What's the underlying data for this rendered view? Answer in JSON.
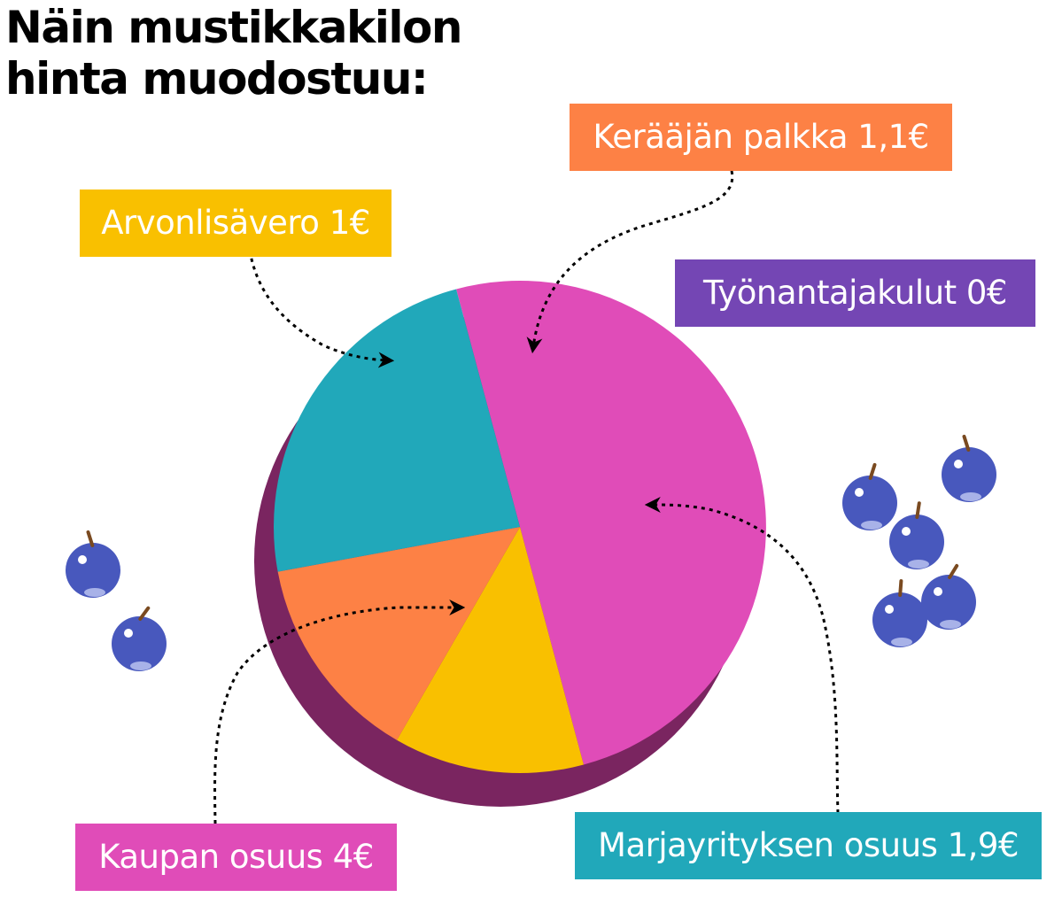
{
  "title": {
    "line1": "Näin mustikkakilon",
    "line2": "hinta muodostuu:"
  },
  "chart_data": {
    "type": "pie",
    "unit": "€",
    "slices": [
      {
        "label": "Kaupan osuus 4€",
        "value": 4.0,
        "color": "#e04cb8",
        "side_color": "#7a2560"
      },
      {
        "label": "Arvonlisävero 1€",
        "value": 1.0,
        "color": "#f9c000",
        "side_color": "#7a2560"
      },
      {
        "label": "Kerääjän palkka 1,1€",
        "value": 1.1,
        "color": "#fd8145",
        "side_color": "#7a2560"
      },
      {
        "label": "Marjayrityksen osuus 1,9€",
        "value": 1.9,
        "color": "#21a8ba",
        "side_color": "#7a2560"
      },
      {
        "label": "Työnantajakulut 0€",
        "value": 0,
        "color": "#7446b4",
        "side_color": "#7a2560"
      }
    ],
    "legend_placement": "callouts around the pie"
  },
  "colors": {
    "blueberry": "#4858bd",
    "blueberry_highlight": "#a8b2e8",
    "stem": "#7a4a20"
  }
}
